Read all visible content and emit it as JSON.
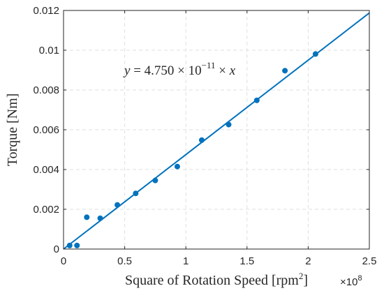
{
  "chart_data": {
    "type": "scatter",
    "xlabel": "Square of Rotation Speed [rpm",
    "xlabel_sup": "2",
    "xlabel_close": "]",
    "x_exponent_base": "×10",
    "x_exponent_power": "8",
    "ylabel": "Torque [Nm]",
    "xlim": [
      0,
      2.5
    ],
    "ylim": [
      0,
      0.012
    ],
    "x_ticks": [
      0,
      0.5,
      1,
      1.5,
      2,
      2.5
    ],
    "x_tick_labels": [
      "0",
      "0.5",
      "1",
      "1.5",
      "2",
      "2.5"
    ],
    "y_ticks": [
      0,
      0.002,
      0.004,
      0.006,
      0.008,
      0.01,
      0.012
    ],
    "y_tick_labels": [
      "0",
      "0.002",
      "0.004",
      "0.006",
      "0.008",
      "0.01",
      "0.012"
    ],
    "grid": true,
    "x_scale_factor": 100000000,
    "points": [
      {
        "x": 0.05,
        "y": 0.00018
      },
      {
        "x": 0.11,
        "y": 0.00018
      },
      {
        "x": 0.19,
        "y": 0.0016
      },
      {
        "x": 0.3,
        "y": 0.00155
      },
      {
        "x": 0.44,
        "y": 0.00222
      },
      {
        "x": 0.59,
        "y": 0.0028
      },
      {
        "x": 0.75,
        "y": 0.00345
      },
      {
        "x": 0.93,
        "y": 0.00415
      },
      {
        "x": 1.13,
        "y": 0.00548
      },
      {
        "x": 1.35,
        "y": 0.00626
      },
      {
        "x": 1.58,
        "y": 0.00748
      },
      {
        "x": 1.81,
        "y": 0.00897
      },
      {
        "x": 2.06,
        "y": 0.00981
      }
    ],
    "fit_line": {
      "slope": 4.75e-11,
      "x_start": 0,
      "x_end": 2.5
    },
    "annotation": {
      "lhs": "y",
      "eq": " = 4.750 × 10",
      "exp": "−11",
      "times": " × ",
      "rhs": "x"
    },
    "colors": {
      "series": "#0072BD",
      "axis": "#262626",
      "grid": "#dfdfdf"
    }
  }
}
